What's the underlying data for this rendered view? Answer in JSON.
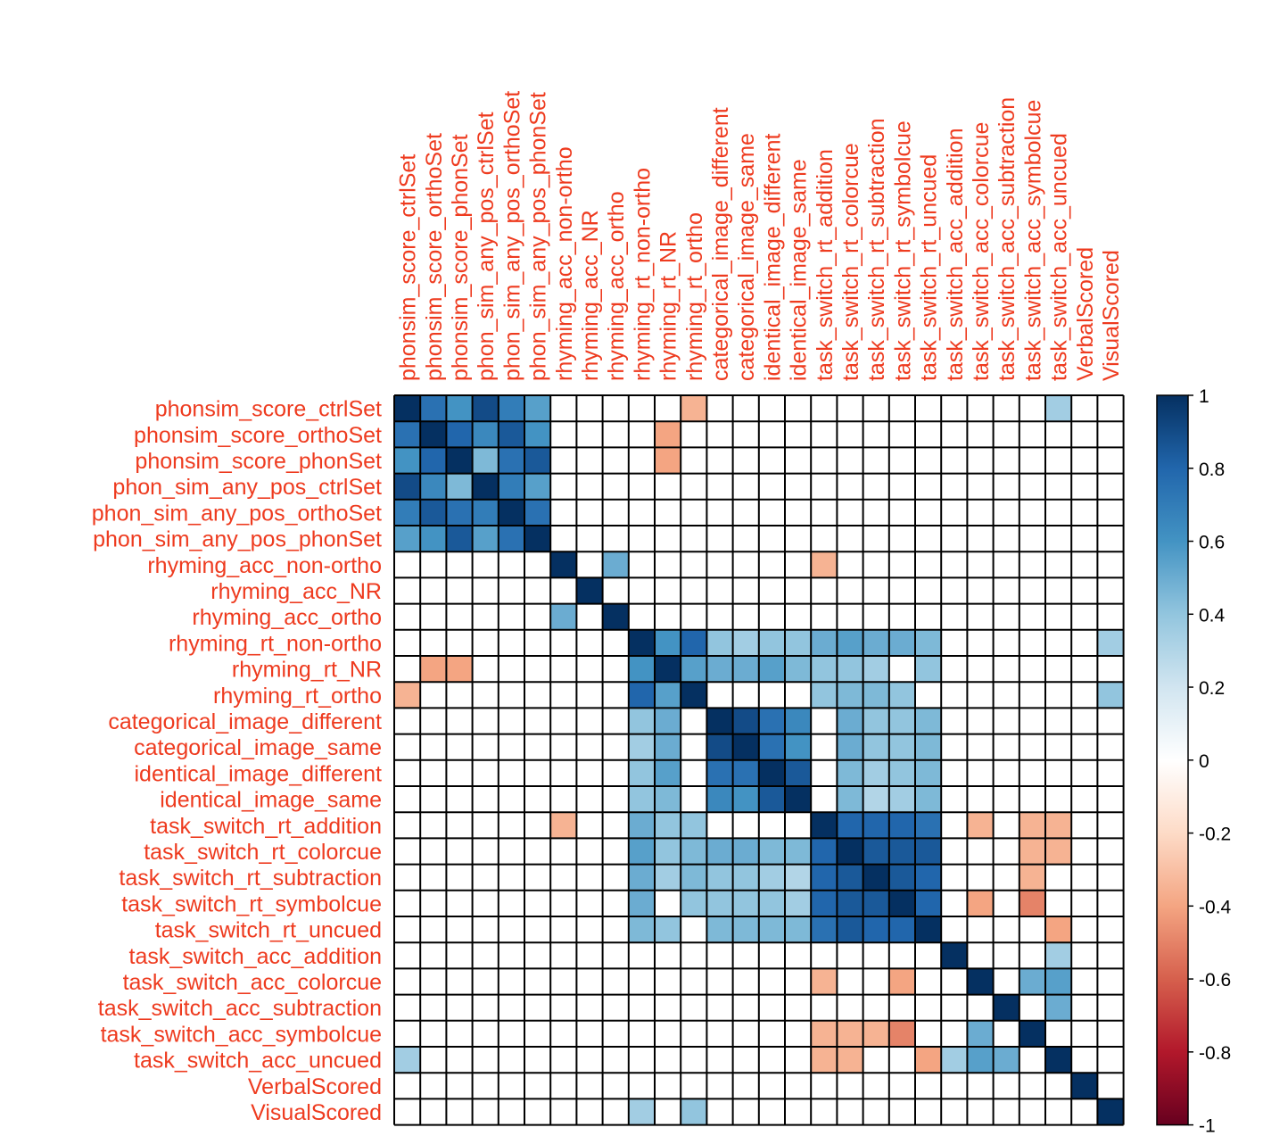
{
  "colors": {
    "label": "#ee3b1f",
    "grid": "#000000",
    "scale": [
      "#67001f",
      "#b2182b",
      "#d6604d",
      "#f4a582",
      "#fddbc7",
      "#ffffff",
      "#d1e5f0",
      "#92c5de",
      "#4393c3",
      "#2166ac",
      "#053061"
    ]
  },
  "chart_data": {
    "type": "heatmap",
    "variables": [
      "phonsim_score_ctrlSet",
      "phonsim_score_orthoSet",
      "phonsim_score_phonSet",
      "phon_sim_any_pos_ctrlSet",
      "phon_sim_any_pos_orthoSet",
      "phon_sim_any_pos_phonSet",
      "rhyming_acc_non-ortho",
      "rhyming_acc_NR",
      "rhyming_acc_ortho",
      "rhyming_rt_non-ortho",
      "rhyming_rt_NR",
      "rhyming_rt_ortho",
      "categorical_image_different",
      "categorical_image_same",
      "identical_image_different",
      "identical_image_same",
      "task_switch_rt_addition",
      "task_switch_rt_colorcue",
      "task_switch_rt_subtraction",
      "task_switch_rt_symbolcue",
      "task_switch_rt_uncued",
      "task_switch_acc_addition",
      "task_switch_acc_colorcue",
      "task_switch_acc_subtraction",
      "task_switch_acc_symbolcue",
      "task_switch_acc_uncued",
      "VerbalScored",
      "VisualScored"
    ],
    "matrix": [
      [
        1,
        0.75,
        0.6,
        0.9,
        0.7,
        0.55,
        0,
        0,
        0,
        0,
        0,
        -0.35,
        0,
        0,
        0,
        0,
        0,
        0,
        0,
        0,
        0,
        0,
        0,
        0,
        0,
        0.35,
        0,
        0
      ],
      [
        0.75,
        1,
        0.8,
        0.65,
        0.85,
        0.6,
        0,
        0,
        0,
        0,
        -0.4,
        0,
        0,
        0,
        0,
        0,
        0,
        0,
        0,
        0,
        0,
        0,
        0,
        0,
        0,
        0,
        0,
        0
      ],
      [
        0.6,
        0.8,
        1,
        0.45,
        0.75,
        0.85,
        0,
        0,
        0,
        0,
        -0.4,
        0,
        0,
        0,
        0,
        0,
        0,
        0,
        0,
        0,
        0,
        0,
        0,
        0,
        0,
        0,
        0,
        0
      ],
      [
        0.9,
        0.65,
        0.45,
        1,
        0.7,
        0.55,
        0,
        0,
        0,
        0,
        0,
        0,
        0,
        0,
        0,
        0,
        0,
        0,
        0,
        0,
        0,
        0,
        0,
        0,
        0,
        0,
        0,
        0
      ],
      [
        0.7,
        0.85,
        0.75,
        0.7,
        1,
        0.75,
        0,
        0,
        0,
        0,
        0,
        0,
        0,
        0,
        0,
        0,
        0,
        0,
        0,
        0,
        0,
        0,
        0,
        0,
        0,
        0,
        0,
        0
      ],
      [
        0.55,
        0.6,
        0.85,
        0.55,
        0.75,
        1,
        0,
        0,
        0,
        0,
        0,
        0,
        0,
        0,
        0,
        0,
        0,
        0,
        0,
        0,
        0,
        0,
        0,
        0,
        0,
        0,
        0,
        0
      ],
      [
        0,
        0,
        0,
        0,
        0,
        0,
        1,
        0,
        0.5,
        0,
        0,
        0,
        0,
        0,
        0,
        0,
        -0.35,
        0,
        0,
        0,
        0,
        0,
        0,
        0,
        0,
        0,
        0,
        0
      ],
      [
        0,
        0,
        0,
        0,
        0,
        0,
        0,
        1,
        0,
        0,
        0,
        0,
        0,
        0,
        0,
        0,
        0,
        0,
        0,
        0,
        0,
        0,
        0,
        0,
        0,
        0,
        0,
        0
      ],
      [
        0,
        0,
        0,
        0,
        0,
        0,
        0.5,
        0,
        1,
        0,
        0,
        0,
        0,
        0,
        0,
        0,
        0,
        0,
        0,
        0,
        0,
        0,
        0,
        0,
        0,
        0,
        0,
        0
      ],
      [
        0,
        0,
        0,
        0,
        0,
        0,
        0,
        0,
        0,
        1,
        0.6,
        0.8,
        0.4,
        0.35,
        0.4,
        0.4,
        0.5,
        0.55,
        0.5,
        0.5,
        0.45,
        0,
        0,
        0,
        0,
        0,
        0,
        0.35
      ],
      [
        0,
        -0.4,
        -0.4,
        0,
        0,
        0,
        0,
        0,
        0,
        0.6,
        1,
        0.55,
        0.5,
        0.5,
        0.55,
        0.45,
        0.4,
        0.4,
        0.35,
        0,
        0.4,
        0,
        0,
        0,
        0,
        0,
        0,
        0
      ],
      [
        -0.35,
        0,
        0,
        0,
        0,
        0,
        0,
        0,
        0,
        0.8,
        0.55,
        1,
        0,
        0,
        0,
        0,
        0.4,
        0.45,
        0.45,
        0.4,
        0,
        0,
        0,
        0,
        0,
        0,
        0,
        0.4
      ],
      [
        0,
        0,
        0,
        0,
        0,
        0,
        0,
        0,
        0,
        0.4,
        0.5,
        0,
        1,
        0.9,
        0.75,
        0.65,
        0,
        0.5,
        0.4,
        0.4,
        0.45,
        0,
        0,
        0,
        0,
        0,
        0,
        0
      ],
      [
        0,
        0,
        0,
        0,
        0,
        0,
        0,
        0,
        0,
        0.35,
        0.5,
        0,
        0.9,
        1,
        0.75,
        0.6,
        0,
        0.5,
        0.4,
        0.4,
        0.45,
        0,
        0,
        0,
        0,
        0,
        0,
        0
      ],
      [
        0,
        0,
        0,
        0,
        0,
        0,
        0,
        0,
        0,
        0.4,
        0.55,
        0,
        0.75,
        0.75,
        1,
        0.85,
        0,
        0.45,
        0.35,
        0.4,
        0.45,
        0,
        0,
        0,
        0,
        0,
        0,
        0
      ],
      [
        0,
        0,
        0,
        0,
        0,
        0,
        0,
        0,
        0,
        0.4,
        0.45,
        0,
        0.65,
        0.6,
        0.85,
        1,
        0,
        0.45,
        0.3,
        0.35,
        0.45,
        0,
        0,
        0,
        0,
        0,
        0,
        0
      ],
      [
        0,
        0,
        0,
        0,
        0,
        0,
        -0.35,
        0,
        0,
        0.5,
        0.4,
        0.4,
        0,
        0,
        0,
        0,
        1,
        0.8,
        0.8,
        0.8,
        0.75,
        0,
        -0.35,
        0,
        -0.35,
        -0.35,
        0,
        0
      ],
      [
        0,
        0,
        0,
        0,
        0,
        0,
        0,
        0,
        0,
        0.55,
        0.4,
        0.45,
        0.5,
        0.5,
        0.45,
        0.45,
        0.8,
        1,
        0.85,
        0.85,
        0.85,
        0,
        0,
        0,
        -0.35,
        -0.35,
        0,
        0
      ],
      [
        0,
        0,
        0,
        0,
        0,
        0,
        0,
        0,
        0,
        0.5,
        0.35,
        0.45,
        0.4,
        0.4,
        0.35,
        0.3,
        0.8,
        0.85,
        1,
        0.85,
        0.8,
        0,
        0,
        0,
        -0.35,
        0,
        0,
        0
      ],
      [
        0,
        0,
        0,
        0,
        0,
        0,
        0,
        0,
        0,
        0.5,
        0,
        0.4,
        0.4,
        0.4,
        0.4,
        0.35,
        0.8,
        0.85,
        0.85,
        1,
        0.8,
        0,
        -0.4,
        0,
        -0.5,
        0,
        0,
        0
      ],
      [
        0,
        0,
        0,
        0,
        0,
        0,
        0,
        0,
        0,
        0.45,
        0.4,
        0,
        0.45,
        0.45,
        0.45,
        0.45,
        0.75,
        0.85,
        0.8,
        0.8,
        1,
        0,
        0,
        0,
        0,
        -0.4,
        0,
        0
      ],
      [
        0,
        0,
        0,
        0,
        0,
        0,
        0,
        0,
        0,
        0,
        0,
        0,
        0,
        0,
        0,
        0,
        0,
        0,
        0,
        0,
        0,
        1,
        0,
        0,
        0,
        0.35,
        0,
        0
      ],
      [
        0,
        0,
        0,
        0,
        0,
        0,
        0,
        0,
        0,
        0,
        0,
        0,
        0,
        0,
        0,
        0,
        -0.35,
        0,
        0,
        -0.4,
        0,
        0,
        1,
        0,
        0.5,
        0.55,
        0,
        0
      ],
      [
        0,
        0,
        0,
        0,
        0,
        0,
        0,
        0,
        0,
        0,
        0,
        0,
        0,
        0,
        0,
        0,
        0,
        0,
        0,
        0,
        0,
        0,
        0,
        1,
        0,
        0.5,
        0,
        0
      ],
      [
        0,
        0,
        0,
        0,
        0,
        0,
        0,
        0,
        0,
        0,
        0,
        0,
        0,
        0,
        0,
        0,
        -0.35,
        -0.35,
        -0.35,
        -0.5,
        0,
        0,
        0.5,
        0,
        1,
        0,
        0,
        0
      ],
      [
        0.35,
        0,
        0,
        0,
        0,
        0,
        0,
        0,
        0,
        0,
        0,
        0,
        0,
        0,
        0,
        0,
        -0.35,
        -0.35,
        0,
        0,
        -0.4,
        0.35,
        0.55,
        0.5,
        0,
        1,
        0,
        0
      ],
      [
        0,
        0,
        0,
        0,
        0,
        0,
        0,
        0,
        0,
        0,
        0,
        0,
        0,
        0,
        0,
        0,
        0,
        0,
        0,
        0,
        0,
        0,
        0,
        0,
        0,
        0,
        1,
        0
      ],
      [
        0,
        0,
        0,
        0,
        0,
        0,
        0,
        0,
        0,
        0.35,
        0,
        0.4,
        0,
        0,
        0,
        0,
        0,
        0,
        0,
        0,
        0,
        0,
        0,
        0,
        0,
        0,
        0,
        1
      ]
    ],
    "colorbar": {
      "range": [
        -1,
        1
      ],
      "ticks": [
        "1",
        "0.8",
        "0.6",
        "0.4",
        "0.2",
        "0",
        "-0.2",
        "-0.4",
        "-0.6",
        "-0.8",
        "-1"
      ]
    },
    "legend_position": "right",
    "grid": true
  }
}
